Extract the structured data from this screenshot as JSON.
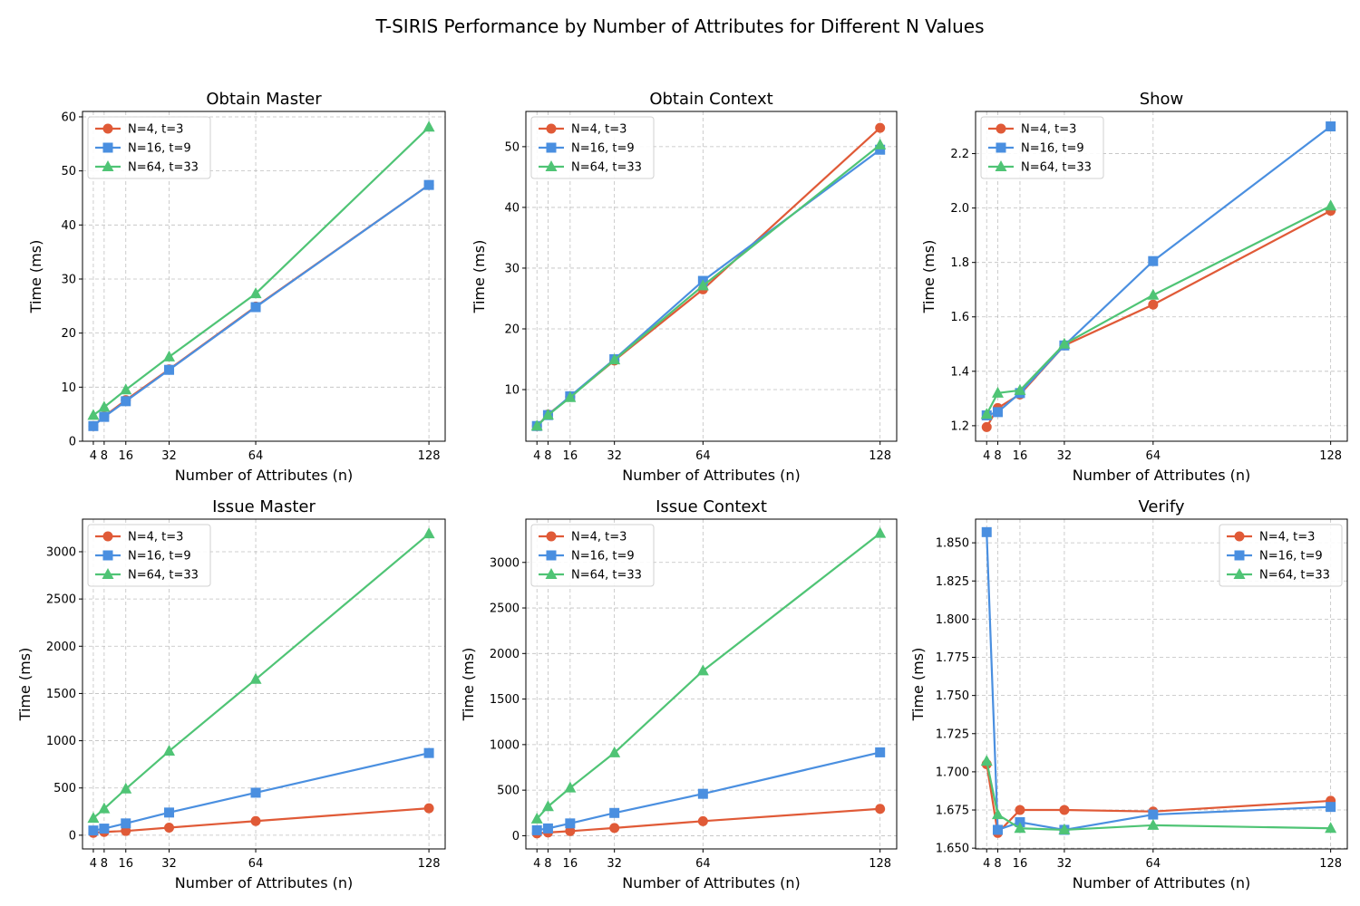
{
  "figure_title": "T-SIRIS Performance by Number of Attributes for Different N Values",
  "series_styles": [
    {
      "name": "N=4, t=3",
      "color": "#e05a37",
      "marker": "circle"
    },
    {
      "name": "N=16, t=9",
      "color": "#4a8fe0",
      "marker": "square"
    },
    {
      "name": "N=64, t=33",
      "color": "#4fc475",
      "marker": "triangle"
    }
  ],
  "chart_data": [
    {
      "type": "line",
      "title": "Obtain Master",
      "xlabel": "Number of Attributes (n)",
      "ylabel": "Time (ms)",
      "x": [
        4,
        8,
        16,
        32,
        64,
        128
      ],
      "xticks": [
        4,
        8,
        16,
        32,
        64,
        128
      ],
      "xlim": [
        0,
        134
      ],
      "ylim": [
        0,
        61
      ],
      "yticks": [
        "0",
        "10",
        "20",
        "30",
        "40",
        "50",
        "60"
      ],
      "grid": true,
      "legend": "top-left",
      "series": [
        {
          "name": "N=4, t=3",
          "values": [
            2.8,
            4.6,
            7.6,
            13.3,
            24.9,
            47.4
          ]
        },
        {
          "name": "N=16, t=9",
          "values": [
            2.8,
            4.5,
            7.4,
            13.2,
            24.8,
            47.4
          ]
        },
        {
          "name": "N=64, t=33",
          "values": [
            4.8,
            6.3,
            9.5,
            15.6,
            27.3,
            58.1
          ]
        }
      ]
    },
    {
      "type": "line",
      "title": "Obtain Context",
      "xlabel": "Number of Attributes (n)",
      "ylabel": "Time (ms)",
      "x": [
        4,
        8,
        16,
        32,
        64,
        128
      ],
      "xticks": [
        4,
        8,
        16,
        32,
        64,
        128
      ],
      "xlim": [
        0,
        134
      ],
      "ylim": [
        1.5,
        55.8
      ],
      "yticks": [
        "10",
        "20",
        "30",
        "40",
        "50"
      ],
      "grid": true,
      "legend": "top-left",
      "series": [
        {
          "name": "N=4, t=3",
          "values": [
            4.0,
            5.9,
            8.8,
            14.8,
            26.5,
            53.1
          ]
        },
        {
          "name": "N=16, t=9",
          "values": [
            4.0,
            5.8,
            8.9,
            15.0,
            27.9,
            49.5
          ]
        },
        {
          "name": "N=64, t=33",
          "values": [
            4.0,
            5.8,
            8.7,
            14.9,
            27.1,
            50.3
          ]
        }
      ]
    },
    {
      "type": "line",
      "title": "Show",
      "xlabel": "Number of Attributes (n)",
      "ylabel": "Time (ms)",
      "x": [
        4,
        8,
        16,
        32,
        64,
        128
      ],
      "xticks": [
        4,
        8,
        16,
        32,
        64,
        128
      ],
      "xlim": [
        0,
        134
      ],
      "ylim": [
        1.143,
        2.355
      ],
      "yticks": [
        "1.2",
        "1.4",
        "1.6",
        "1.8",
        "2.0",
        "2.2"
      ],
      "grid": true,
      "legend": "top-left",
      "series": [
        {
          "name": "N=4, t=3",
          "values": [
            1.195,
            1.265,
            1.315,
            1.495,
            1.645,
            1.99
          ]
        },
        {
          "name": "N=16, t=9",
          "values": [
            1.238,
            1.25,
            1.32,
            1.495,
            1.805,
            2.3
          ]
        },
        {
          "name": "N=64, t=33",
          "values": [
            1.242,
            1.32,
            1.33,
            1.5,
            1.68,
            2.008
          ]
        }
      ]
    },
    {
      "type": "line",
      "title": "Issue Master",
      "xlabel": "Number of Attributes (n)",
      "ylabel": "Time (ms)",
      "x": [
        4,
        8,
        16,
        32,
        64,
        128
      ],
      "xticks": [
        4,
        8,
        16,
        32,
        64,
        128
      ],
      "xlim": [
        0,
        134
      ],
      "ylim": [
        -145,
        3345
      ],
      "yticks": [
        "0",
        "500",
        "1000",
        "1500",
        "2000",
        "2500",
        "3000"
      ],
      "grid": true,
      "legend": "top-left",
      "series": [
        {
          "name": "N=4, t=3",
          "values": [
            25,
            35,
            45,
            80,
            150,
            285
          ]
        },
        {
          "name": "N=16, t=9",
          "values": [
            50,
            70,
            125,
            240,
            450,
            870
          ]
        },
        {
          "name": "N=64, t=33",
          "values": [
            180,
            280,
            490,
            890,
            1650,
            3190
          ]
        }
      ]
    },
    {
      "type": "line",
      "title": "Issue Context",
      "xlabel": "Number of Attributes (n)",
      "ylabel": "Time (ms)",
      "x": [
        4,
        8,
        16,
        32,
        64,
        128
      ],
      "xticks": [
        4,
        8,
        16,
        32,
        64,
        128
      ],
      "xlim": [
        0,
        134
      ],
      "ylim": [
        -145,
        3475
      ],
      "yticks": [
        "0",
        "500",
        "1000",
        "1500",
        "2000",
        "2500",
        "3000"
      ],
      "grid": true,
      "legend": "top-left",
      "series": [
        {
          "name": "N=4, t=3",
          "values": [
            25,
            35,
            50,
            85,
            160,
            295
          ]
        },
        {
          "name": "N=16, t=9",
          "values": [
            60,
            80,
            135,
            250,
            460,
            915
          ]
        },
        {
          "name": "N=64, t=33",
          "values": [
            185,
            320,
            525,
            910,
            1810,
            3320
          ]
        }
      ]
    },
    {
      "type": "line",
      "title": "Verify",
      "xlabel": "Number of Attributes (n)",
      "ylabel": "Time (ms)",
      "x": [
        4,
        8,
        16,
        32,
        64,
        128
      ],
      "xticks": [
        4,
        8,
        16,
        32,
        64,
        128
      ],
      "xlim": [
        0,
        134
      ],
      "ylim": [
        1.6495,
        1.8655
      ],
      "yticks": [
        "1.650",
        "1.675",
        "1.700",
        "1.725",
        "1.750",
        "1.775",
        "1.800",
        "1.825",
        "1.850"
      ],
      "grid": true,
      "legend": "top-right",
      "series": [
        {
          "name": "N=4, t=3",
          "values": [
            1.705,
            1.66,
            1.675,
            1.675,
            1.674,
            1.681
          ]
        },
        {
          "name": "N=16, t=9",
          "values": [
            1.857,
            1.662,
            1.667,
            1.662,
            1.672,
            1.677
          ]
        },
        {
          "name": "N=64, t=33",
          "values": [
            1.707,
            1.672,
            1.663,
            1.662,
            1.665,
            1.663
          ]
        }
      ]
    }
  ]
}
